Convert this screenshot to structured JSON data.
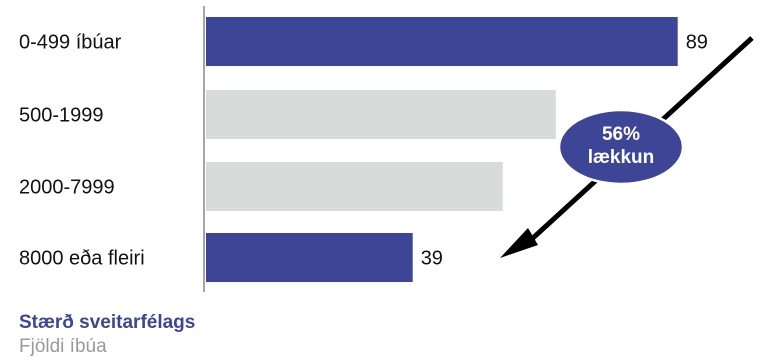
{
  "chart_data": {
    "type": "bar",
    "orientation": "horizontal",
    "categories": [
      "0-499 íbúar",
      "500-1999",
      "2000-7999",
      "8000 eða fleiri"
    ],
    "values": [
      89,
      66,
      56,
      39
    ],
    "data_labels": [
      "89",
      "",
      "",
      "39"
    ],
    "xlim": [
      0,
      100
    ],
    "grid": false,
    "colors": {
      "highlight": "#3d4596",
      "muted": "#d9dbda",
      "badge": "#3d4596"
    },
    "highlighted": [
      true,
      false,
      false,
      true
    ],
    "annotation": {
      "line1": "56%",
      "line2": "lækkun"
    }
  },
  "footer": {
    "title": "Stærð sveitarfélags",
    "subtitle": "Fjöldi íbúa"
  }
}
